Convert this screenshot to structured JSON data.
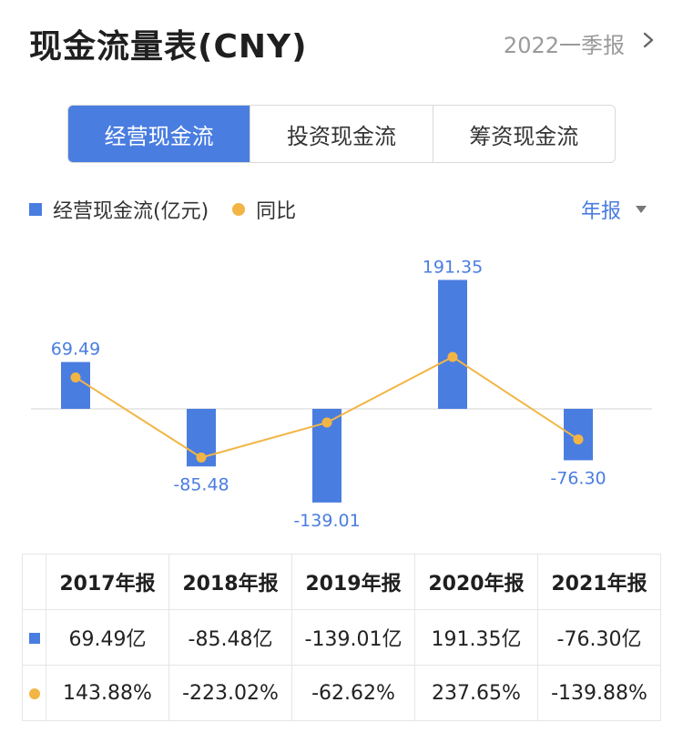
{
  "header": {
    "title": "现金流量表(CNY)",
    "period": "2022一季报"
  },
  "tabs": [
    {
      "label": "经营现金流",
      "active": true
    },
    {
      "label": "投资现金流",
      "active": false
    },
    {
      "label": "筹资现金流",
      "active": false
    }
  ],
  "legend": {
    "bar_label": "经营现金流(亿元)",
    "line_label": "同比"
  },
  "report_selector": "年报",
  "colors": {
    "accent": "#4a7de0",
    "line": "#f2b545",
    "positive": "#e04848",
    "negative": "#2fa463"
  },
  "chart_data": {
    "type": "bar",
    "categories": [
      "2017年报",
      "2018年报",
      "2019年报",
      "2020年报",
      "2021年报"
    ],
    "series": [
      {
        "name": "经营现金流(亿元)",
        "type": "bar",
        "values": [
          69.49,
          -85.48,
          -139.01,
          191.35,
          -76.3
        ]
      },
      {
        "name": "同比",
        "type": "line",
        "values": [
          143.88,
          -223.02,
          -62.62,
          237.65,
          -139.88
        ]
      }
    ],
    "data_labels": [
      "69.49",
      "-85.48",
      "-139.01",
      "191.35",
      "-76.30"
    ]
  },
  "table": {
    "headers": [
      "2017年报",
      "2018年报",
      "2019年报",
      "2020年报",
      "2021年报"
    ],
    "values": [
      "69.49亿",
      "-85.48亿",
      "-139.01亿",
      "191.35亿",
      "-76.30亿"
    ],
    "yoy": [
      "143.88%",
      "-223.02%",
      "-62.62%",
      "237.65%",
      "-139.88%"
    ]
  }
}
